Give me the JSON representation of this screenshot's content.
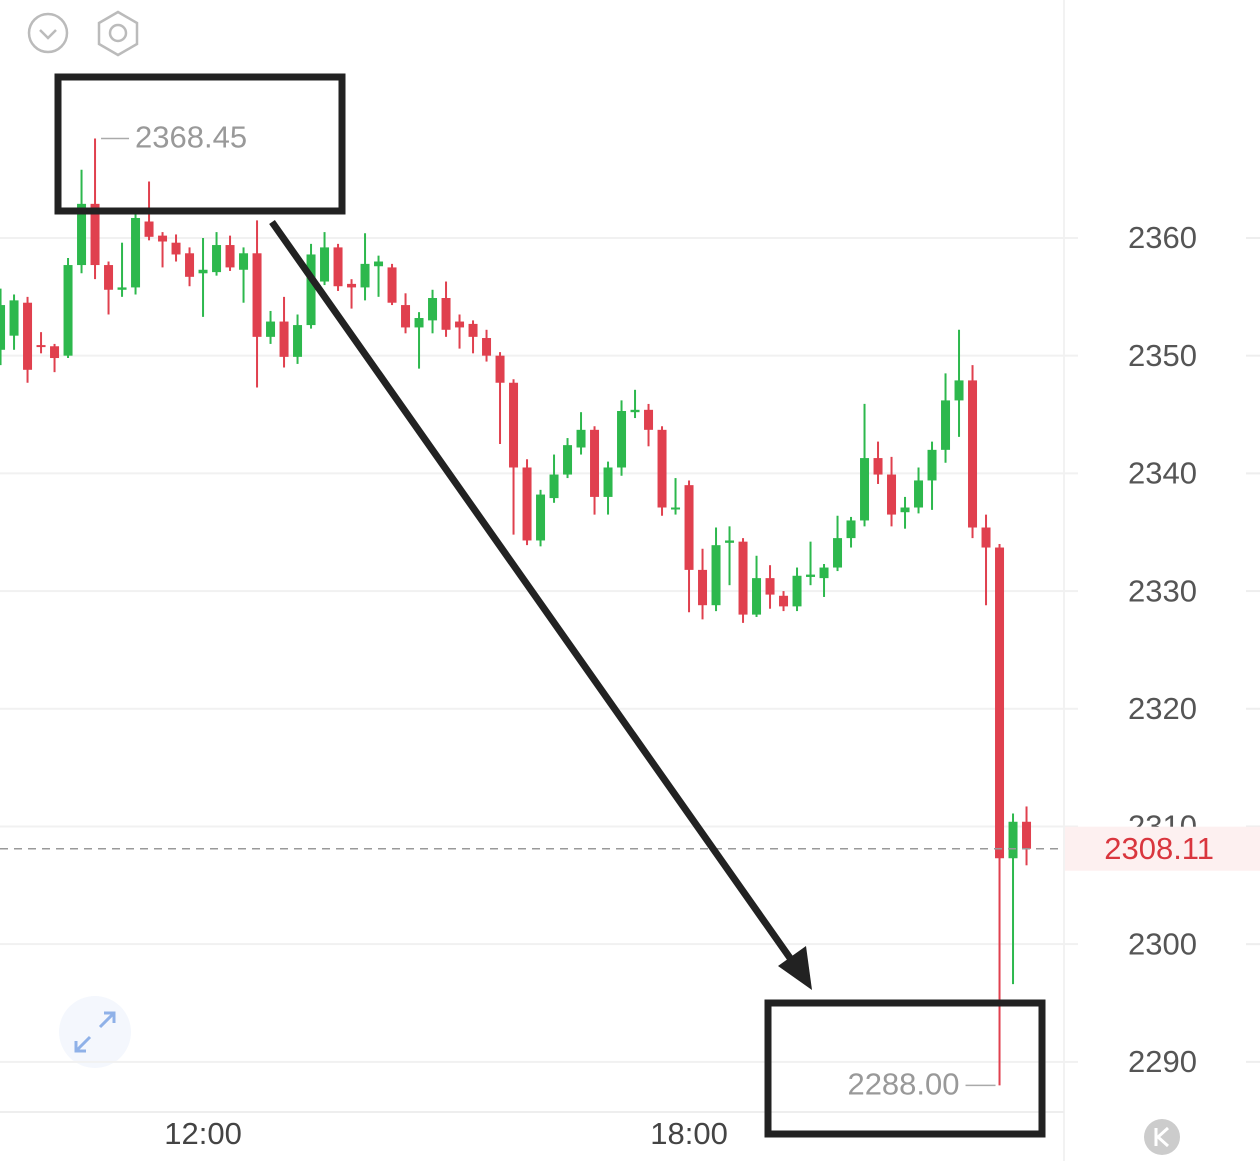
{
  "chart_data": {
    "type": "candlestick",
    "x": [
      570,
      580,
      590,
      600,
      610,
      620,
      630,
      640,
      650,
      660,
      670,
      680,
      690,
      700,
      710,
      720,
      730,
      740,
      750,
      760,
      770,
      780,
      790,
      800,
      810,
      820,
      830,
      840,
      850,
      860,
      870,
      880,
      890,
      900,
      910,
      920,
      930,
      940,
      950,
      960,
      970,
      980,
      990,
      1000,
      1010,
      1020,
      1030,
      1040,
      1050,
      1060,
      1070,
      1080,
      1090,
      1100,
      1110,
      1120,
      1130,
      1140,
      1150,
      1160,
      1170,
      1180,
      1190,
      1200,
      1210,
      1220,
      1230,
      1240,
      1250,
      1260,
      1270,
      1280,
      1290,
      1300,
      1310,
      1320,
      1330
    ],
    "open": [
      2350.5,
      2351.7,
      2354.5,
      2350.9,
      2350.8,
      2350,
      2357.7,
      2362.9,
      2357.7,
      2355.6,
      2355.8,
      2361.4,
      2360.2,
      2359.6,
      2358.7,
      2357,
      2357.1,
      2359.4,
      2357.3,
      2358.7,
      2351.6,
      2352.9,
      2349.9,
      2352.6,
      2356.3,
      2359.2,
      2356.1,
      2355.8,
      2357.6,
      2357.5,
      2354.3,
      2352.4,
      2353,
      2354.9,
      2352.9,
      2352.7,
      2351.5,
      2350,
      2347.7,
      2340.5,
      2334.3,
      2337.9,
      2339.9,
      2342.2,
      2343.7,
      2338,
      2340.5,
      2345.2,
      2345.4,
      2343.7,
      2337,
      2339,
      2331.8,
      2328.8,
      2334.1,
      2334.2,
      2328,
      2331.1,
      2329.6,
      2328.7,
      2331.2,
      2331.1,
      2332,
      2334.5,
      2336,
      2341.3,
      2339.9,
      2336.7,
      2337.1,
      2339.4,
      2342,
      2346.2,
      2347.9,
      2335.4,
      2333.7,
      2307.3,
      2310.4
    ],
    "high": [
      2355.7,
      2355.2,
      2355,
      2352,
      2351,
      2358.3,
      2365.8,
      2368.45,
      2358,
      2359.6,
      2362,
      2364.8,
      2360.5,
      2360.3,
      2359.2,
      2360,
      2360.5,
      2360.2,
      2359.2,
      2361.5,
      2353.8,
      2355,
      2353.5,
      2359.5,
      2360.5,
      2359.5,
      2356.5,
      2360.4,
      2358.5,
      2357.8,
      2355.3,
      2353.7,
      2355.6,
      2356.3,
      2353.5,
      2353,
      2352.2,
      2350.3,
      2348,
      2341.2,
      2338.6,
      2341.6,
      2343,
      2345.2,
      2344,
      2341,
      2346.2,
      2347.1,
      2345.9,
      2344,
      2339.6,
      2339.4,
      2333.6,
      2335.4,
      2335.5,
      2334.5,
      2333,
      2332.2,
      2330,
      2332,
      2334.2,
      2332.3,
      2336.4,
      2336.3,
      2345.9,
      2342.7,
      2341.4,
      2338,
      2340.5,
      2342.7,
      2348.5,
      2352.2,
      2349.2,
      2336.5,
      2334,
      2311.1,
      2311.7
    ],
    "low": [
      2349.2,
      2350.5,
      2347.7,
      2350.2,
      2348.6,
      2349.8,
      2357,
      2356.5,
      2353.5,
      2355,
      2355.2,
      2359.8,
      2357.5,
      2358,
      2355.9,
      2353.3,
      2356.8,
      2357.2,
      2354.5,
      2347.3,
      2351,
      2349,
      2349.3,
      2352.3,
      2356,
      2355.5,
      2354,
      2354.7,
      2355,
      2354.3,
      2351.9,
      2348.9,
      2351.9,
      2351.6,
      2350.6,
      2350.2,
      2349.5,
      2342.5,
      2334.8,
      2333.9,
      2333.8,
      2337.5,
      2339.6,
      2341.6,
      2336.5,
      2336.5,
      2339.8,
      2344.7,
      2342.3,
      2336.4,
      2336.5,
      2328.2,
      2327.6,
      2328.3,
      2330.5,
      2327.3,
      2327.8,
      2328.5,
      2328.3,
      2328.3,
      2330.5,
      2329.5,
      2331.7,
      2333.7,
      2335.5,
      2339.1,
      2335.5,
      2335.3,
      2336.6,
      2336.9,
      2340.9,
      2343.1,
      2334.5,
      2328.8,
      2288,
      2296.6,
      2306.7
    ],
    "close": [
      2354.3,
      2354.7,
      2348.8,
      2350.8,
      2349.8,
      2357.7,
      2362.9,
      2357.7,
      2355.6,
      2355.8,
      2361.7,
      2360.1,
      2359.7,
      2358.6,
      2356.7,
      2357.3,
      2359.4,
      2357.5,
      2358.7,
      2351.6,
      2352.9,
      2349.9,
      2352.6,
      2358.6,
      2359.2,
      2355.9,
      2355.8,
      2357.8,
      2358,
      2354.5,
      2352.4,
      2353.2,
      2354.9,
      2352.2,
      2352.4,
      2351.6,
      2350,
      2347.7,
      2340.5,
      2334.3,
      2338.2,
      2339.9,
      2342.4,
      2343.7,
      2338,
      2340.5,
      2345.3,
      2345.4,
      2343.7,
      2337.1,
      2337.1,
      2331.8,
      2328.8,
      2333.9,
      2334.3,
      2328,
      2331.1,
      2329.7,
      2328.7,
      2331.3,
      2331.4,
      2332,
      2334.5,
      2336,
      2341.3,
      2339.9,
      2336.5,
      2337.1,
      2339.4,
      2342,
      2346.2,
      2347.9,
      2335.4,
      2333.7,
      2307.3,
      2310.4,
      2308.11
    ],
    "up_color": "#2db84d",
    "down_color": "#e0404e",
    "xlim": [
      569.6,
      1358.5
    ],
    "xticks": [
      {
        "value": 720,
        "label": "12:00"
      },
      {
        "value": 1080,
        "label": "18:00"
      }
    ],
    "ylim": [
      2285.74,
      2380.22
    ],
    "yticks": [
      2290,
      2300,
      2310,
      2320,
      2330,
      2340,
      2350,
      2360
    ],
    "grid": true,
    "annotations": [
      {
        "value": 2368.45,
        "label": "2368.45"
      },
      {
        "value": 2288,
        "label": "2288.00"
      }
    ],
    "last_price": {
      "value": 2308.11,
      "label": "2308.11"
    }
  }
}
